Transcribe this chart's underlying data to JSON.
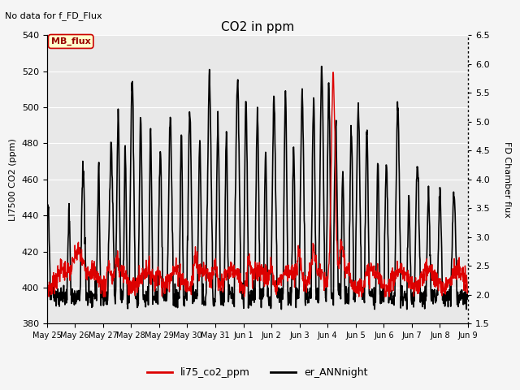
{
  "title": "CO2 in ppm",
  "top_left_text": "No data for f_FD_Flux",
  "ylabel_left": "LI7500 CO2 (ppm)",
  "ylabel_right": "FD Chamber flux",
  "ylim_left": [
    380,
    540
  ],
  "ylim_right": [
    1.5,
    6.5
  ],
  "yticks_left": [
    380,
    400,
    420,
    440,
    460,
    480,
    500,
    520,
    540
  ],
  "yticks_right": [
    1.5,
    2.0,
    2.5,
    3.0,
    3.5,
    4.0,
    4.5,
    5.0,
    5.5,
    6.0,
    6.5
  ],
  "xtick_labels": [
    "May 25",
    "May 26",
    "May 27",
    "May 28",
    "May 29",
    "May 30",
    "May 31",
    "Jun 1",
    "Jun 2",
    "Jun 3",
    "Jun 4",
    "Jun 5",
    "Jun 6",
    "Jun 7",
    "Jun 8",
    "Jun 9"
  ],
  "legend_labels": [
    "li75_co2_ppm",
    "er_ANNnight"
  ],
  "color_red": "#dd0000",
  "color_black": "#000000",
  "bg_color": "#e8e8e8",
  "annotation_box": {
    "label": "MB_flux",
    "facecolor": "#ffffcc",
    "edgecolor": "#cc0000"
  },
  "grid_color": "#ffffff",
  "linewidth_red": 1.0,
  "linewidth_black": 1.2,
  "figsize": [
    6.4,
    4.8
  ],
  "dpi": 100
}
